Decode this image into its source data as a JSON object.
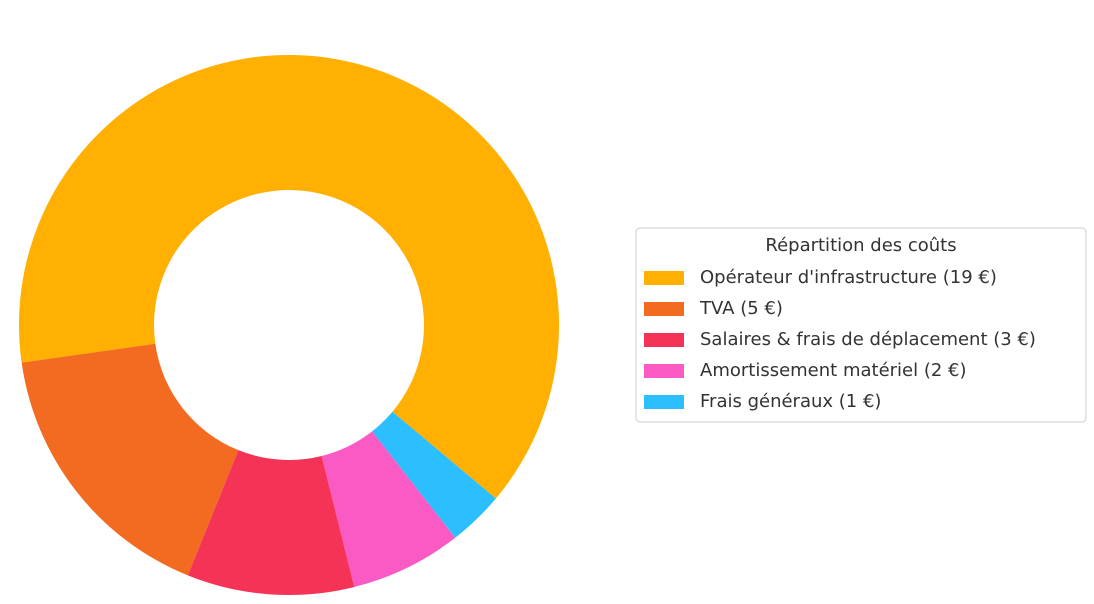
{
  "chart_data": {
    "type": "donut",
    "categories": [
      "Opérateur d'infrastructure (19 €)",
      "TVA (5 €)",
      "Salaires & frais de déplacement (3 €)",
      "Amortissement matériel (2 €)",
      "Frais généraux (1 €)"
    ],
    "values": [
      19,
      5,
      3,
      2,
      1
    ],
    "colors": [
      "#ffb000",
      "#f26b21",
      "#f43356",
      "#fa5ac3",
      "#2bbfff"
    ],
    "legend_title": "Répartition des coûts",
    "legend": "right"
  }
}
